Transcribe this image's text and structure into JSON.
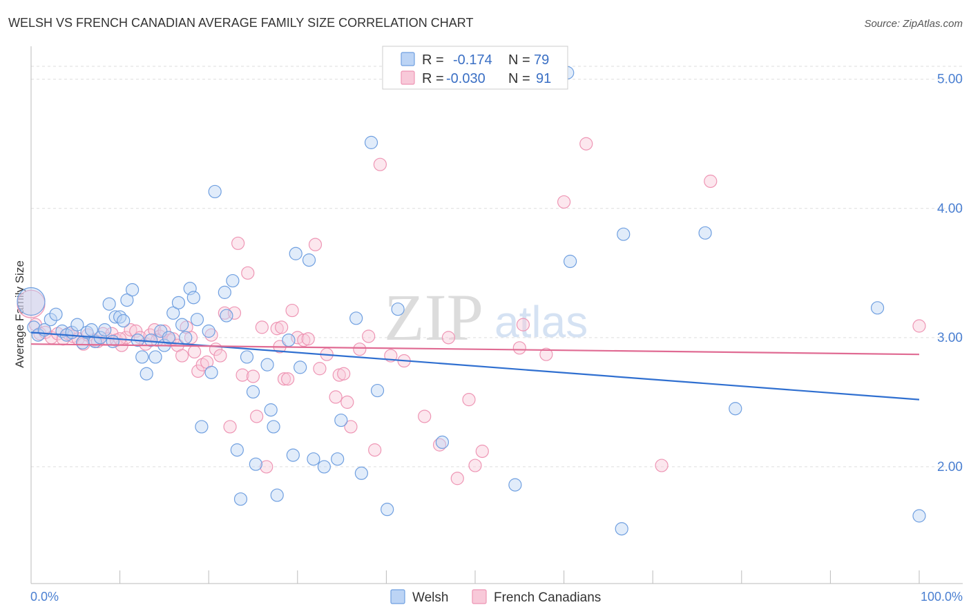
{
  "title": "WELSH VS FRENCH CANADIAN AVERAGE FAMILY SIZE CORRELATION CHART",
  "source": "Source: ZipAtlas.com",
  "watermark": {
    "zip": "ZIP",
    "atlas": "atlas"
  },
  "legend": {
    "rows": [
      {
        "r_label": "R =",
        "r_value": "-0.174",
        "n_label": "N =",
        "n_value": "79"
      },
      {
        "r_label": "R =",
        "r_value": "-0.030",
        "n_label": "N =",
        "n_value": "91"
      }
    ]
  },
  "colors": {
    "welsh": "#6f9fe0",
    "welsh_fill": "#bcd4f5",
    "welsh_line": "#2f6fd0",
    "french": "#ee95b4",
    "french_fill": "#f8c9d9",
    "french_line": "#e06b93",
    "grid": "#dddddd",
    "tick_text": "#4a7fd1"
  },
  "chart_data": {
    "type": "scatter",
    "title": "WELSH VS FRENCH CANADIAN AVERAGE FAMILY SIZE CORRELATION CHART",
    "xlabel": "",
    "ylabel": "Average Family Size",
    "xlim": [
      0,
      100
    ],
    "ylim": [
      1.0,
      5.1
    ],
    "x_tick_labels": [
      "0.0%",
      "100.0%"
    ],
    "y_ticks": [
      2.0,
      3.0,
      4.0,
      5.0
    ],
    "y_tick_labels": [
      "2.00",
      "3.00",
      "4.00",
      "5.00"
    ],
    "grid": true,
    "legend_position": "top-center",
    "series": [
      {
        "name": "Welsh",
        "r": -0.174,
        "n": 79,
        "trend": {
          "x": [
            0,
            100
          ],
          "y": [
            3.04,
            2.52
          ]
        },
        "points": [
          [
            0.0,
            3.28
          ],
          [
            0.3,
            3.08
          ],
          [
            0.8,
            3.02
          ],
          [
            1.5,
            3.06
          ],
          [
            2.2,
            3.14
          ],
          [
            2.8,
            3.18
          ],
          [
            3.5,
            3.05
          ],
          [
            4.0,
            3.02
          ],
          [
            4.6,
            3.04
          ],
          [
            5.2,
            3.1
          ],
          [
            5.8,
            2.96
          ],
          [
            6.3,
            3.04
          ],
          [
            6.8,
            3.06
          ],
          [
            7.2,
            2.97
          ],
          [
            7.8,
            3.0
          ],
          [
            8.3,
            3.06
          ],
          [
            8.8,
            3.26
          ],
          [
            9.2,
            2.97
          ],
          [
            9.5,
            3.16
          ],
          [
            10.0,
            3.16
          ],
          [
            10.4,
            3.13
          ],
          [
            10.8,
            3.29
          ],
          [
            11.4,
            3.37
          ],
          [
            12.0,
            2.98
          ],
          [
            12.5,
            2.85
          ],
          [
            13.0,
            2.72
          ],
          [
            13.5,
            2.98
          ],
          [
            14.0,
            2.85
          ],
          [
            14.6,
            3.05
          ],
          [
            15.0,
            2.94
          ],
          [
            15.5,
            3.0
          ],
          [
            16.0,
            3.19
          ],
          [
            16.6,
            3.27
          ],
          [
            17.0,
            3.1
          ],
          [
            17.4,
            3.0
          ],
          [
            17.9,
            3.38
          ],
          [
            18.3,
            3.31
          ],
          [
            18.7,
            3.14
          ],
          [
            19.2,
            2.31
          ],
          [
            20.0,
            3.05
          ],
          [
            20.3,
            2.73
          ],
          [
            20.7,
            4.13
          ],
          [
            22.0,
            3.17
          ],
          [
            22.7,
            3.44
          ],
          [
            23.2,
            2.13
          ],
          [
            23.6,
            1.75
          ],
          [
            24.3,
            2.85
          ],
          [
            25.0,
            2.58
          ],
          [
            25.3,
            2.02
          ],
          [
            26.6,
            2.79
          ],
          [
            27.0,
            2.44
          ],
          [
            27.3,
            2.31
          ],
          [
            27.7,
            1.78
          ],
          [
            29.0,
            2.98
          ],
          [
            29.5,
            2.09
          ],
          [
            29.8,
            3.65
          ],
          [
            30.3,
            2.77
          ],
          [
            31.3,
            3.6
          ],
          [
            31.8,
            2.06
          ],
          [
            33.0,
            2.0
          ],
          [
            34.5,
            2.06
          ],
          [
            36.6,
            3.15
          ],
          [
            37.2,
            1.95
          ],
          [
            38.3,
            4.51
          ],
          [
            39.0,
            2.59
          ],
          [
            40.1,
            1.67
          ],
          [
            41.3,
            3.22
          ],
          [
            46.3,
            2.19
          ],
          [
            54.5,
            1.86
          ],
          [
            60.4,
            5.05
          ],
          [
            60.7,
            3.59
          ],
          [
            66.5,
            1.52
          ],
          [
            66.7,
            3.8
          ],
          [
            75.9,
            3.81
          ],
          [
            79.3,
            2.45
          ],
          [
            95.3,
            3.23
          ],
          [
            100.0,
            1.62
          ],
          [
            34.9,
            2.36
          ],
          [
            21.8,
            3.35
          ]
        ]
      },
      {
        "name": "French Canadians",
        "r": -0.03,
        "n": 91,
        "trend": {
          "x": [
            0,
            100
          ],
          "y": [
            2.95,
            2.87
          ]
        },
        "points": [
          [
            0.0,
            3.26
          ],
          [
            0.5,
            3.1
          ],
          [
            1.0,
            3.03
          ],
          [
            1.6,
            3.04
          ],
          [
            2.3,
            3.0
          ],
          [
            3.0,
            3.03
          ],
          [
            3.6,
            2.99
          ],
          [
            4.2,
            3.03
          ],
          [
            4.7,
            3.01
          ],
          [
            5.3,
            2.99
          ],
          [
            5.9,
            2.95
          ],
          [
            6.4,
            3.02
          ],
          [
            7.0,
            2.98
          ],
          [
            7.5,
            2.97
          ],
          [
            8.1,
            3.03
          ],
          [
            8.6,
            2.99
          ],
          [
            9.1,
            3.03
          ],
          [
            9.6,
            2.98
          ],
          [
            10.2,
            2.94
          ],
          [
            10.7,
            3.0
          ],
          [
            11.2,
            3.06
          ],
          [
            11.8,
            3.05
          ],
          [
            12.3,
            3.0
          ],
          [
            12.9,
            2.95
          ],
          [
            13.4,
            3.02
          ],
          [
            13.9,
            3.06
          ],
          [
            14.5,
            3.01
          ],
          [
            15.0,
            3.05
          ],
          [
            15.6,
            2.98
          ],
          [
            16.0,
            2.99
          ],
          [
            16.5,
            2.94
          ],
          [
            17.0,
            2.86
          ],
          [
            17.5,
            3.08
          ],
          [
            18.0,
            3.0
          ],
          [
            18.4,
            2.89
          ],
          [
            18.8,
            2.74
          ],
          [
            19.3,
            2.79
          ],
          [
            19.8,
            2.81
          ],
          [
            20.3,
            3.02
          ],
          [
            20.8,
            2.91
          ],
          [
            21.3,
            2.86
          ],
          [
            21.8,
            3.19
          ],
          [
            22.4,
            2.31
          ],
          [
            22.9,
            3.19
          ],
          [
            23.3,
            3.73
          ],
          [
            23.8,
            2.71
          ],
          [
            24.4,
            3.5
          ],
          [
            25.0,
            2.7
          ],
          [
            25.4,
            2.39
          ],
          [
            26.0,
            3.08
          ],
          [
            26.5,
            2.0
          ],
          [
            27.7,
            3.07
          ],
          [
            28.0,
            2.93
          ],
          [
            28.5,
            2.68
          ],
          [
            28.9,
            2.68
          ],
          [
            29.4,
            3.21
          ],
          [
            30.0,
            3.0
          ],
          [
            30.7,
            2.98
          ],
          [
            31.2,
            2.99
          ],
          [
            32.0,
            3.72
          ],
          [
            32.5,
            2.76
          ],
          [
            33.3,
            2.87
          ],
          [
            34.3,
            2.54
          ],
          [
            34.7,
            2.71
          ],
          [
            35.2,
            2.72
          ],
          [
            35.6,
            2.5
          ],
          [
            36.0,
            2.31
          ],
          [
            37.0,
            2.91
          ],
          [
            38.0,
            3.01
          ],
          [
            38.7,
            2.13
          ],
          [
            39.3,
            4.34
          ],
          [
            40.5,
            2.86
          ],
          [
            42.0,
            2.82
          ],
          [
            44.3,
            2.39
          ],
          [
            46.0,
            2.17
          ],
          [
            47.0,
            3.0
          ],
          [
            48.0,
            1.91
          ],
          [
            49.3,
            2.52
          ],
          [
            50.0,
            2.01
          ],
          [
            50.8,
            2.12
          ],
          [
            55.0,
            2.92
          ],
          [
            55.4,
            3.1
          ],
          [
            58.0,
            2.87
          ],
          [
            60.0,
            4.05
          ],
          [
            62.5,
            4.5
          ],
          [
            71.0,
            2.01
          ],
          [
            76.5,
            4.21
          ],
          [
            100.0,
            3.09
          ],
          [
            10.0,
            2.99
          ],
          [
            14.2,
            2.98
          ],
          [
            28.2,
            3.08
          ]
        ]
      }
    ]
  }
}
